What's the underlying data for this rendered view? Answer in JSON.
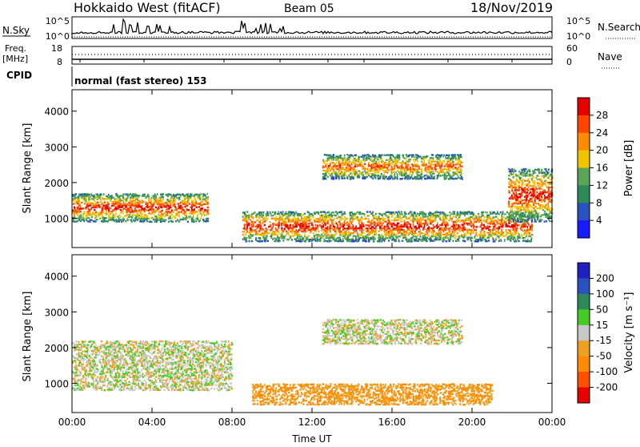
{
  "header": {
    "title": "Hokkaido West (fitACF)",
    "beam": "Beam 05",
    "date": "18/Nov/2019"
  },
  "top_panels": {
    "nsky_label": "N.Sky",
    "nsky_ticks": [
      "10^5",
      "10^0"
    ],
    "nsearch_label": "N.Search",
    "freq_label_1": "Freq.",
    "freq_label_2": "[MHz]",
    "freq_ticks": [
      "18",
      "8"
    ],
    "nave_ticks": [
      "60",
      "0"
    ],
    "nave_label": "Nave",
    "cpid_label": "CPID",
    "cpid_text": "normal (fast stereo) 153"
  },
  "colors": {
    "power_scale": [
      "#1a1aff",
      "#2a52be",
      "#2e8b57",
      "#5aa55a",
      "#f0c400",
      "#ff8c00",
      "#ff4500",
      "#e60000"
    ],
    "velocity_scale": [
      "#2020c0",
      "#2a52be",
      "#2e8b57",
      "#44cc22",
      "#c8c8c8",
      "#f0a020",
      "#ff8c00",
      "#ff5000",
      "#e60000"
    ]
  },
  "chart_data": [
    {
      "type": "heatmap",
      "name": "Power",
      "xlabel": "",
      "ylabel": "Slant Range [km]",
      "x_ticks": [
        "00:00",
        "04:00",
        "08:00",
        "12:00",
        "16:00",
        "20:00",
        "00:00"
      ],
      "xlim_hours": [
        0,
        24
      ],
      "y_ticks": [
        1000,
        2000,
        3000,
        4000
      ],
      "ylim": [
        180,
        4600
      ],
      "colorbar": {
        "label": "Power [dB]",
        "ticks": [
          4,
          8,
          12,
          16,
          20,
          24,
          28
        ],
        "range": [
          0,
          32
        ]
      },
      "features": [
        {
          "t": [
            0.0,
            6.8
          ],
          "range_km": [
            900,
            1700
          ],
          "peak_db": 30
        },
        {
          "t": [
            8.5,
            23.0
          ],
          "range_km": [
            350,
            1200
          ],
          "peak_db": 30
        },
        {
          "t": [
            12.5,
            19.5
          ],
          "range_km": [
            2100,
            2800
          ],
          "peak_db": 26
        },
        {
          "t": [
            21.8,
            24.0
          ],
          "range_km": [
            900,
            2400
          ],
          "peak_db": 30
        }
      ]
    },
    {
      "type": "heatmap",
      "name": "Velocity",
      "xlabel": "Time UT",
      "ylabel": "Slant Range [km]",
      "x_ticks": [
        "00:00",
        "04:00",
        "08:00",
        "12:00",
        "16:00",
        "20:00",
        "00:00"
      ],
      "xlim_hours": [
        0,
        24
      ],
      "y_ticks": [
        1000,
        2000,
        3000,
        4000
      ],
      "ylim": [
        180,
        4600
      ],
      "colorbar": {
        "label": "Velocity [m s⁻¹]",
        "ticks": [
          200,
          100,
          50,
          15,
          -15,
          -50,
          -100,
          -200
        ]
      },
      "features": [
        {
          "t": [
            0.0,
            8.0
          ],
          "range_km": [
            800,
            2200
          ],
          "velocity": 0
        },
        {
          "t": [
            9.0,
            21.0
          ],
          "range_km": [
            400,
            1000
          ],
          "velocity": -60
        },
        {
          "t": [
            12.5,
            19.5
          ],
          "range_km": [
            2100,
            2800
          ],
          "velocity": 0
        }
      ]
    }
  ]
}
